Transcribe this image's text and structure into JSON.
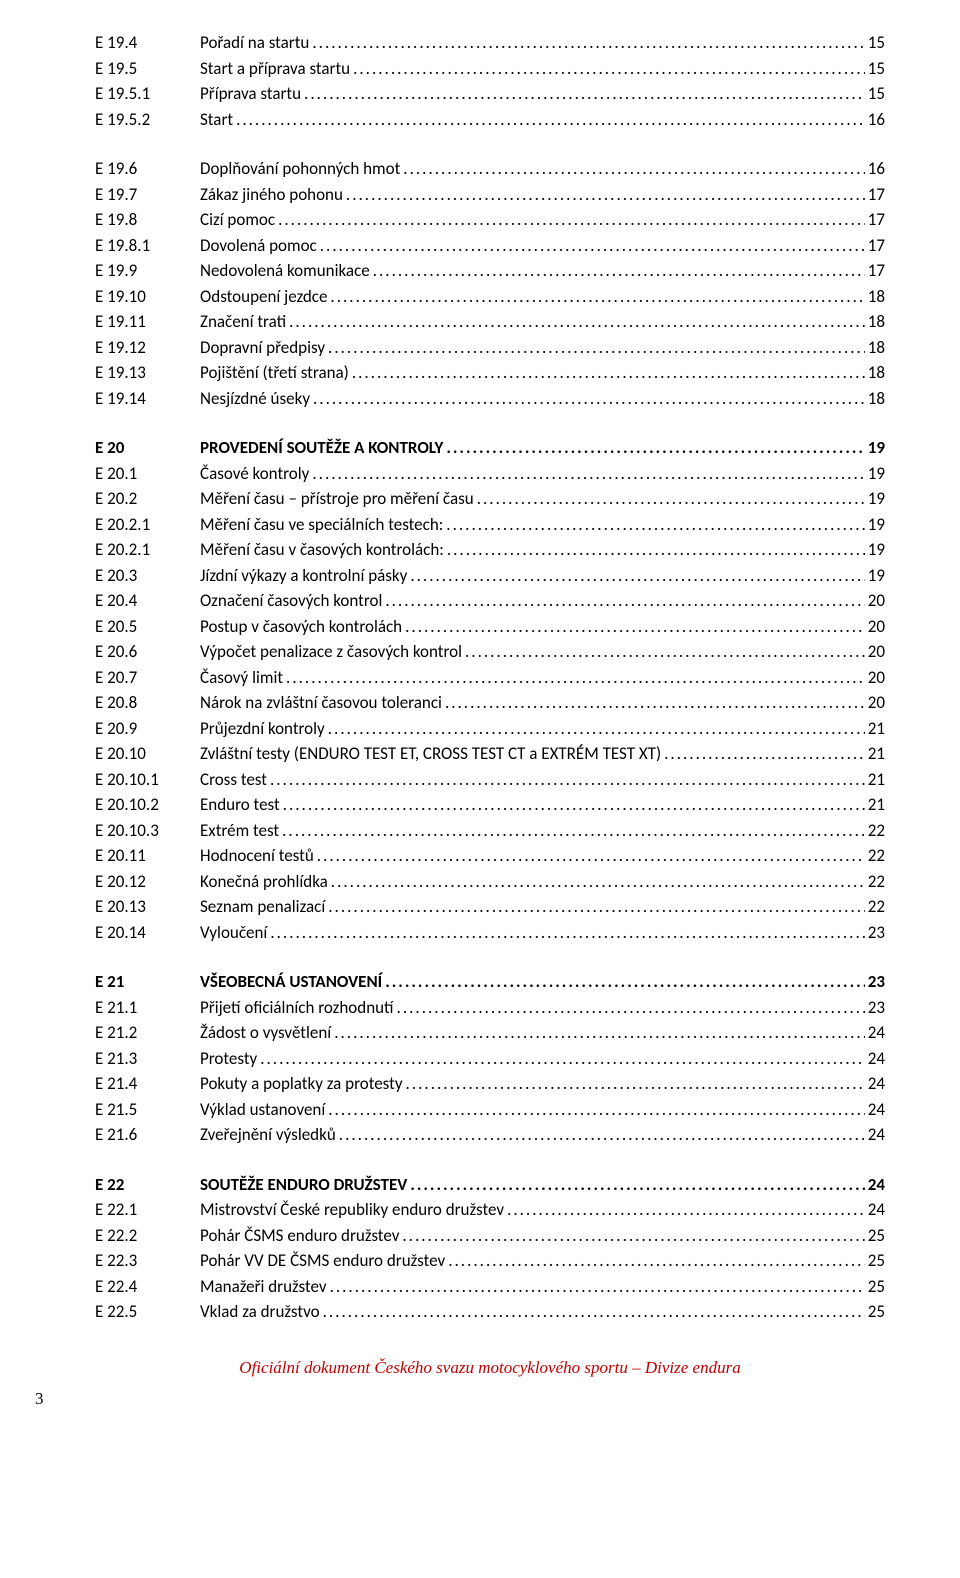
{
  "sections": [
    {
      "items": [
        {
          "ref": "E 19.4",
          "title": "Pořadí na startu",
          "page": "15"
        },
        {
          "ref": "E 19.5",
          "title": "Start a příprava startu",
          "page": "15"
        },
        {
          "ref": "E 19.5.1",
          "title": "Příprava startu",
          "page": "15"
        },
        {
          "ref": "E 19.5.2",
          "title": "Start",
          "page": "16"
        }
      ]
    },
    {
      "items": [
        {
          "ref": "E 19.6",
          "title": "Doplňování pohonných hmot",
          "page": "16"
        },
        {
          "ref": "E 19.7",
          "title": "Zákaz jiného pohonu",
          "page": "17"
        },
        {
          "ref": "E 19.8",
          "title": "Cizí pomoc",
          "page": "17"
        },
        {
          "ref": "E 19.8.1",
          "title": "Dovolená pomoc",
          "page": "17"
        },
        {
          "ref": "E 19.9",
          "title": "Nedovolená komunikace",
          "page": "17"
        },
        {
          "ref": "E 19.10",
          "title": "Odstoupení jezdce",
          "page": "18"
        },
        {
          "ref": "E 19.11",
          "title": "Značení trati",
          "page": "18"
        },
        {
          "ref": "E 19.12",
          "title": "Dopravní předpisy",
          "page": "18"
        },
        {
          "ref": "E 19.13",
          "title": "Pojištění (třetí strana)",
          "page": "18"
        },
        {
          "ref": "E 19.14",
          "title": "Nesjízdné úseky",
          "page": "18"
        }
      ]
    },
    {
      "items": [
        {
          "ref": "E 20",
          "title": "PROVEDENÍ SOUTĚŽE A KONTROLY",
          "page": "19",
          "bold": true
        },
        {
          "ref": "E 20.1",
          "title": "Časové kontroly",
          "page": "19"
        },
        {
          "ref": "E 20.2",
          "title": "Měření času – přístroje pro měření času",
          "page": "19"
        },
        {
          "ref": "E 20.2.1",
          "title": "Měření času ve speciálních testech:",
          "page": "19"
        },
        {
          "ref": "E 20.2.1",
          "title": "Měření času v časových kontrolách:",
          "page": "19"
        },
        {
          "ref": "E 20.3",
          "title": "Jízdní výkazy a kontrolní pásky",
          "page": "19"
        },
        {
          "ref": "E 20.4",
          "title": "Označení časových kontrol",
          "page": "20"
        },
        {
          "ref": "E 20.5",
          "title": "Postup v časových kontrolách",
          "page": "20"
        },
        {
          "ref": "E 20.6",
          "title": "Výpočet penalizace z časových kontrol",
          "page": "20"
        },
        {
          "ref": "E 20.7",
          "title": "Časový limit",
          "page": "20"
        },
        {
          "ref": "E 20.8",
          "title": "Nárok na zvláštní časovou toleranci",
          "page": "20"
        },
        {
          "ref": "E 20.9",
          "title": "Průjezdní kontroly",
          "page": "21"
        },
        {
          "ref": "E 20.10",
          "title": "Zvláštní testy (ENDURO TEST ET, CROSS TEST CT a EXTRÉM TEST  XT)",
          "page": "21"
        },
        {
          "ref": "E 20.10.1",
          "title": "Cross test",
          "page": "21"
        },
        {
          "ref": "E 20.10.2",
          "title": "Enduro test",
          "page": "21"
        },
        {
          "ref": "E 20.10.3",
          "title": "Extrém test",
          "page": "22"
        },
        {
          "ref": "E 20.11",
          "title": "Hodnocení testů",
          "page": "22"
        },
        {
          "ref": "E 20.12",
          "title": "Konečná prohlídka",
          "page": "22"
        },
        {
          "ref": "E 20.13",
          "title": "Seznam penalizací",
          "page": "22"
        },
        {
          "ref": "E 20.14",
          "title": "Vyloučení",
          "page": "23"
        }
      ]
    },
    {
      "items": [
        {
          "ref": "E 21",
          "title": "VŠEOBECNÁ USTANOVENÍ",
          "page": "23",
          "bold": true
        },
        {
          "ref": "E 21.1",
          "title": "Přijetí oficiálních rozhodnutí",
          "page": "23"
        },
        {
          "ref": "E 21.2",
          "title": "Žádost o vysvětlení",
          "page": "24"
        },
        {
          "ref": "E 21.3",
          "title": "Protesty",
          "page": "24"
        },
        {
          "ref": "E 21.4",
          "title": "Pokuty a poplatky za protesty",
          "page": "24"
        },
        {
          "ref": "E 21.5",
          "title": "Výklad ustanovení",
          "page": "24"
        },
        {
          "ref": "E 21.6",
          "title": "Zveřejnění výsledků",
          "page": "24"
        }
      ]
    },
    {
      "items": [
        {
          "ref": "E 22",
          "title": "SOUTĚŽE ENDURO DRUŽSTEV",
          "page": "24",
          "bold": true
        },
        {
          "ref": "E 22.1",
          "title": "Mistrovství České republiky enduro družstev",
          "page": "24"
        },
        {
          "ref": "E 22.2",
          "title": "Pohár ČSMS enduro družstev",
          "page": "25"
        },
        {
          "ref": "E 22.3",
          "title": "Pohár VV DE ČSMS enduro družstev",
          "page": "25"
        },
        {
          "ref": "E 22.4",
          "title": "Manažeři družstev ",
          "page": "25"
        },
        {
          "ref": "E 22.5",
          "title": "Vklad za družstvo",
          "page": "25"
        }
      ]
    }
  ],
  "footer": "Oficiální dokument Českého svazu motocyklového sportu – Divize endura",
  "pagenum": "3"
}
